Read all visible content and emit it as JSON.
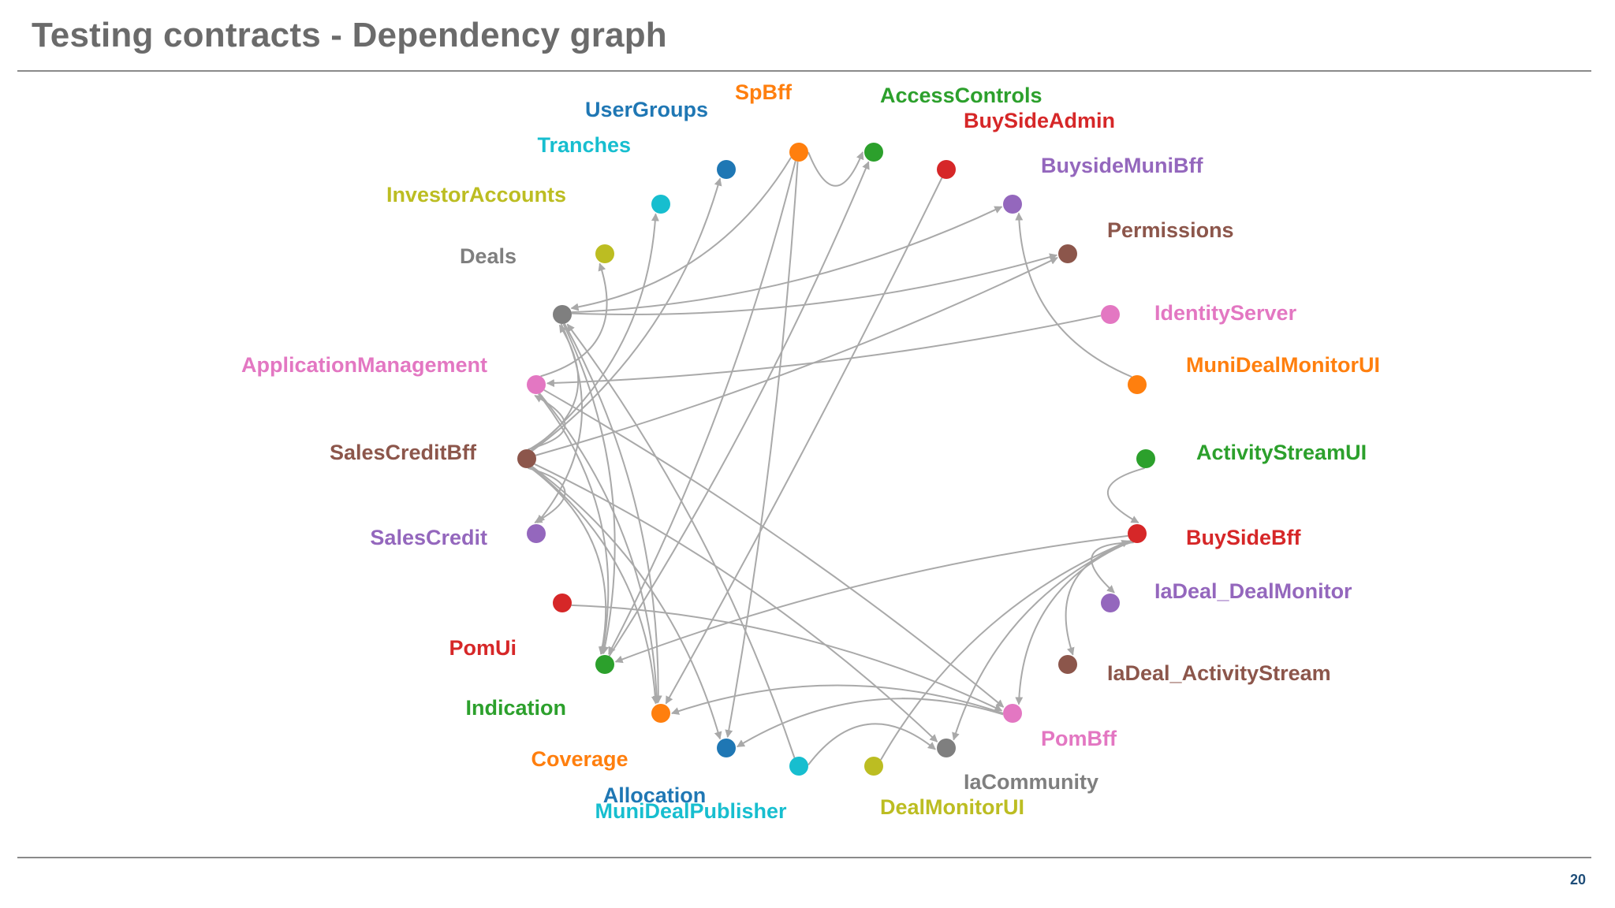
{
  "slide": {
    "title": "Testing contracts - Dependency graph",
    "page_number": "20"
  },
  "graph": {
    "node_radius": 12,
    "edge_color": "#a9a9a9",
    "nodes": [
      {
        "id": "UserGroups",
        "label": "UserGroups",
        "color": "#1f77b4"
      },
      {
        "id": "SpBff",
        "label": "SpBff",
        "color": "#ff7f0e"
      },
      {
        "id": "AccessControls",
        "label": "AccessControls",
        "color": "#2ca02c"
      },
      {
        "id": "BuySideAdmin",
        "label": "BuySideAdmin",
        "color": "#d62728"
      },
      {
        "id": "BuysideMuniBff",
        "label": "BuysideMuniBff",
        "color": "#9467bd"
      },
      {
        "id": "Permissions",
        "label": "Permissions",
        "color": "#8c564b"
      },
      {
        "id": "IdentityServer",
        "label": "IdentityServer",
        "color": "#e377c2"
      },
      {
        "id": "MuniDealMonitorUI",
        "label": "MuniDealMonitorUI",
        "color": "#ff7f0e"
      },
      {
        "id": "ActivityStreamUI",
        "label": "ActivityStreamUI",
        "color": "#2ca02c"
      },
      {
        "id": "BuySideBff",
        "label": "BuySideBff",
        "color": "#d62728"
      },
      {
        "id": "IaDeal_DealMonitor",
        "label": "IaDeal_DealMonitor",
        "color": "#9467bd"
      },
      {
        "id": "IaDeal_ActivityStream",
        "label": "IaDeal_ActivityStream",
        "color": "#8c564b"
      },
      {
        "id": "PomBff",
        "label": "PomBff",
        "color": "#e377c2"
      },
      {
        "id": "IaCommunity",
        "label": "IaCommunity",
        "color": "#7f7f7f"
      },
      {
        "id": "DealMonitorUI",
        "label": "DealMonitorUI",
        "color": "#bcbd22"
      },
      {
        "id": "MuniDealPublisher",
        "label": "MuniDealPublisher",
        "color": "#17becf"
      },
      {
        "id": "Allocation",
        "label": "Allocation",
        "color": "#1f77b4"
      },
      {
        "id": "Coverage",
        "label": "Coverage",
        "color": "#ff7f0e"
      },
      {
        "id": "Indication",
        "label": "Indication",
        "color": "#2ca02c"
      },
      {
        "id": "PomUi",
        "label": "PomUi",
        "color": "#d62728"
      },
      {
        "id": "SalesCredit",
        "label": "SalesCredit",
        "color": "#9467bd"
      },
      {
        "id": "SalesCreditBff",
        "label": "SalesCreditBff",
        "color": "#8c564b"
      },
      {
        "id": "ApplicationManagement",
        "label": "ApplicationManagement",
        "color": "#e377c2"
      },
      {
        "id": "Deals",
        "label": "Deals",
        "color": "#7f7f7f"
      },
      {
        "id": "InvestorAccounts",
        "label": "InvestorAccounts",
        "color": "#bcbd22"
      },
      {
        "id": "Tranches",
        "label": "Tranches",
        "color": "#17becf"
      }
    ],
    "edges": [
      {
        "from": "SpBff",
        "to": "Deals"
      },
      {
        "from": "SpBff",
        "to": "AccessControls"
      },
      {
        "from": "SpBff",
        "to": "Indication"
      },
      {
        "from": "SpBff",
        "to": "Allocation"
      },
      {
        "from": "BuySideAdmin",
        "to": "Coverage"
      },
      {
        "from": "MuniDealMonitorUI",
        "to": "BuysideMuniBff"
      },
      {
        "from": "ActivityStreamUI",
        "to": "BuySideBff"
      },
      {
        "from": "SalesCreditBff",
        "to": "UserGroups"
      },
      {
        "from": "SalesCreditBff",
        "to": "Tranches"
      },
      {
        "from": "SalesCreditBff",
        "to": "Deals"
      },
      {
        "from": "SalesCreditBff",
        "to": "ApplicationManagement"
      },
      {
        "from": "SalesCreditBff",
        "to": "SalesCredit"
      },
      {
        "from": "SalesCreditBff",
        "to": "Permissions"
      },
      {
        "from": "SalesCreditBff",
        "to": "Indication"
      },
      {
        "from": "SalesCreditBff",
        "to": "Coverage"
      },
      {
        "from": "SalesCreditBff",
        "to": "Allocation"
      },
      {
        "from": "SalesCreditBff",
        "to": "IaCommunity"
      },
      {
        "from": "IdentityServer",
        "to": "ApplicationManagement"
      },
      {
        "from": "Deals",
        "to": "BuysideMuniBff"
      },
      {
        "from": "Deals",
        "to": "Permissions"
      },
      {
        "from": "Deals",
        "to": "Indication"
      },
      {
        "from": "Deals",
        "to": "Coverage"
      },
      {
        "from": "Deals",
        "to": "SalesCredit"
      },
      {
        "from": "ApplicationManagement",
        "to": "Indication"
      },
      {
        "from": "ApplicationManagement",
        "to": "Coverage"
      },
      {
        "from": "ApplicationManagement",
        "to": "InvestorAccounts"
      },
      {
        "from": "ApplicationManagement",
        "to": "PomBff"
      },
      {
        "from": "Indication",
        "to": "AccessControls"
      },
      {
        "from": "PomUi",
        "to": "PomBff"
      },
      {
        "from": "BuySideBff",
        "to": "IaDeal_DealMonitor"
      },
      {
        "from": "BuySideBff",
        "to": "IaDeal_ActivityStream"
      },
      {
        "from": "BuySideBff",
        "to": "PomBff"
      },
      {
        "from": "BuySideBff",
        "to": "IaCommunity"
      },
      {
        "from": "BuySideBff",
        "to": "Indication"
      },
      {
        "from": "DealMonitorUI",
        "to": "BuySideBff"
      },
      {
        "from": "MuniDealPublisher",
        "to": "IaCommunity"
      },
      {
        "from": "MuniDealPublisher",
        "to": "Deals"
      },
      {
        "from": "PomBff",
        "to": "Coverage"
      },
      {
        "from": "PomBff",
        "to": "Allocation"
      }
    ]
  }
}
